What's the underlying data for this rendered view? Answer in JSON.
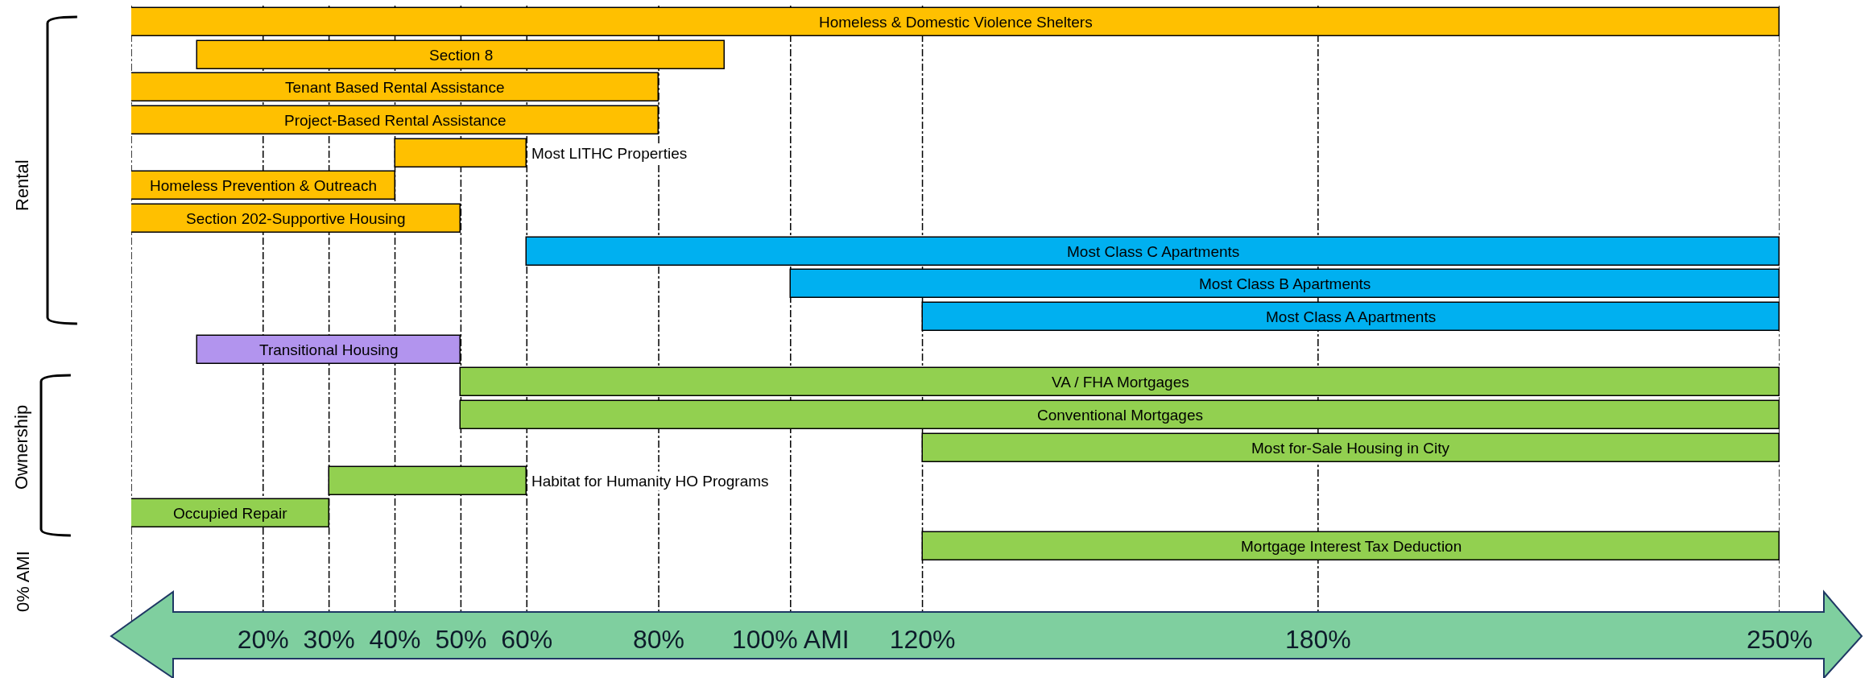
{
  "chart_data": {
    "type": "bar",
    "orientation": "horizontal",
    "categories": [
      "Homeless & Domestic Violence Shelters",
      "Section 8",
      "Tenant Based Rental Assistance",
      "Project-Based Rental Assistance",
      "Most LITHC Properties",
      "Homeless Prevention & Outreach",
      "Section 202-Supportive Housing",
      "Most Class C Apartments",
      "Most Class B Apartments",
      "Most Class A Apartments",
      "Transitional Housing",
      "VA / FHA Mortgages",
      "Conventional Mortgages",
      "Most for-Sale Housing in City",
      "Habitat for Humanity HO Programs",
      "Occupied Repair",
      "Mortgage Interest Tax Deduction"
    ],
    "base": [
      0,
      10,
      0,
      0,
      40,
      0,
      0,
      60,
      100,
      120,
      10,
      50,
      50,
      120,
      30,
      0,
      120
    ],
    "values": [
      250,
      80,
      80,
      80,
      20,
      40,
      50,
      190,
      150,
      130,
      40,
      200,
      200,
      130,
      30,
      30,
      130
    ],
    "colors": [
      "#ffc000",
      "#ffc000",
      "#ffc000",
      "#ffc000",
      "#ffc000",
      "#ffc000",
      "#ffc000",
      "#00b0f0",
      "#00b0f0",
      "#00b0f0",
      "#b294ee",
      "#92d050",
      "#92d050",
      "#92d050",
      "#92d050",
      "#92d050",
      "#92d050"
    ],
    "xlim": [
      0,
      250
    ],
    "xticks": [
      {
        "value": 0,
        "label": null
      },
      {
        "value": 20,
        "label": "20%"
      },
      {
        "value": 30,
        "label": "30%"
      },
      {
        "value": 40,
        "label": "40%"
      },
      {
        "value": 50,
        "label": "50%"
      },
      {
        "value": 60,
        "label": "60%"
      },
      {
        "value": 80,
        "label": "80%"
      },
      {
        "value": 100,
        "label": "100% AMI"
      },
      {
        "value": 120,
        "label": "120%"
      },
      {
        "value": 180,
        "label": "180%"
      },
      {
        "value": 250,
        "label": "250%"
      }
    ],
    "annotations": [
      "Rental",
      "Ownership",
      "0% AMI"
    ],
    "grid": "x"
  }
}
